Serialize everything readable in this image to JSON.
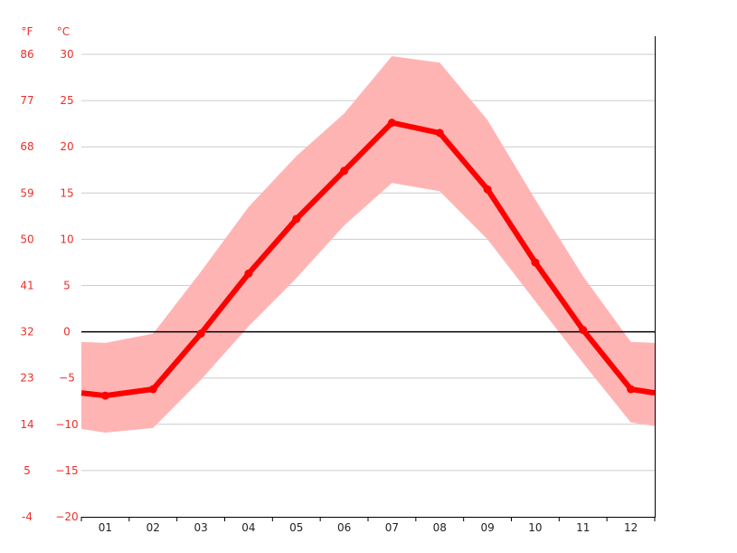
{
  "chart_data": {
    "type": "line",
    "categories": [
      "01",
      "02",
      "03",
      "04",
      "05",
      "06",
      "07",
      "08",
      "09",
      "10",
      "11",
      "12"
    ],
    "units": {
      "fahrenheit": "°F",
      "celsius": "°C"
    },
    "y_ticks_c": [
      "30",
      "25",
      "20",
      "15",
      "10",
      "5",
      "0",
      "−5",
      "−10",
      "−15",
      "−20"
    ],
    "y_ticks_c_values": [
      30,
      25,
      20,
      15,
      10,
      5,
      0,
      -5,
      -10,
      -15,
      -20
    ],
    "y_ticks_f": [
      "86",
      "77",
      "68",
      "59",
      "50",
      "41",
      "32",
      "23",
      "14",
      "5",
      "-4"
    ],
    "ylim": [
      -20,
      30
    ],
    "grid": true,
    "zero_line": true,
    "series": [
      {
        "role": "mean",
        "values": [
          -6.9,
          -6.2,
          -0.2,
          6.3,
          12.2,
          17.4,
          22.6,
          21.5,
          15.4,
          7.5,
          0.2,
          -6.2
        ]
      },
      {
        "role": "max",
        "values": [
          -1.2,
          -0.2,
          6.5,
          13.5,
          19.0,
          23.6,
          29.8,
          29.1,
          22.9,
          14.3,
          6.0,
          -1.1
        ]
      },
      {
        "role": "min",
        "values": [
          -10.9,
          -10.4,
          -5.2,
          0.6,
          5.8,
          11.5,
          16.1,
          15.2,
          10.0,
          3.3,
          -3.4,
          -9.8
        ]
      }
    ],
    "edge_values": {
      "mean": {
        "start": -6.6,
        "end": -6.6
      },
      "max": {
        "start": -1.1,
        "end": -1.2
      },
      "min": {
        "start": -10.5,
        "end": -10.2
      }
    },
    "colors": {
      "line": "#ff0000",
      "band": "#ffb4b4",
      "tick_text": "#e8302a",
      "x_text": "#222222",
      "grid": "#cccccc",
      "axis": "#000000"
    }
  }
}
